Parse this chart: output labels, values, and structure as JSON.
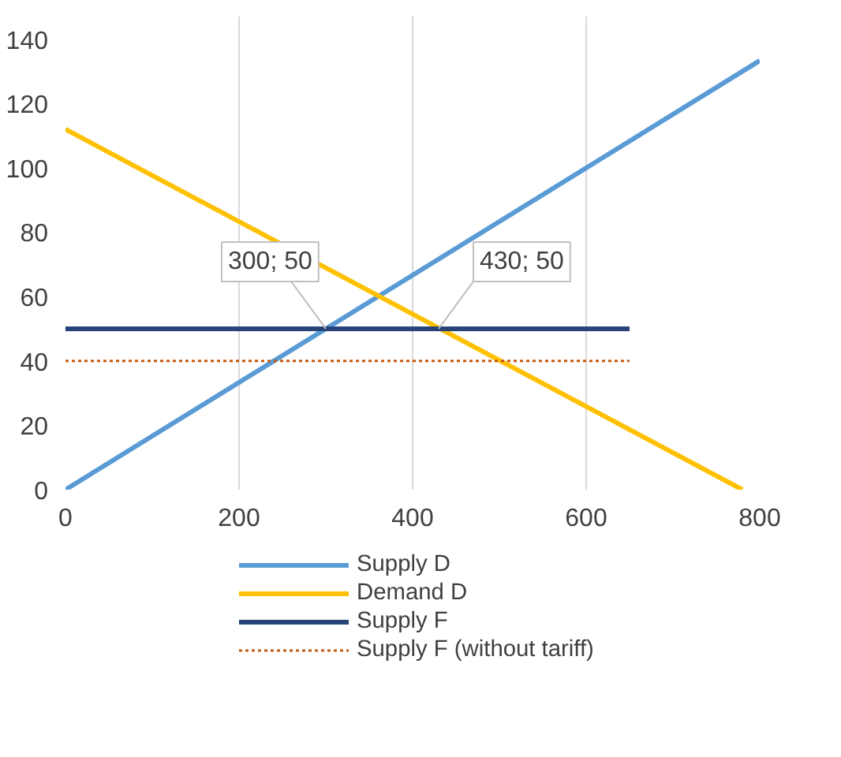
{
  "chart_data": {
    "type": "line",
    "xlim": [
      0,
      800
    ],
    "ylim": [
      0,
      147
    ],
    "xticks": [
      0,
      200,
      400,
      600,
      800
    ],
    "yticks": [
      0,
      20,
      40,
      60,
      80,
      100,
      120,
      140
    ],
    "grid": "x",
    "legend": "bottom",
    "marker": "none",
    "series": [
      {
        "name": "Supply D",
        "color": "#5b9bd5",
        "x": [
          0,
          800
        ],
        "values": [
          0,
          133.3
        ]
      },
      {
        "name": "Demand D",
        "color": "#ffc000",
        "x": [
          0,
          780
        ],
        "values": [
          112,
          0
        ]
      },
      {
        "name": "Supply F",
        "color": "#264478",
        "x": [
          0,
          650
        ],
        "values": [
          50,
          50
        ]
      },
      {
        "name": "Supply F (without tariff)",
        "color": "#c55a11",
        "x": [
          0,
          650
        ],
        "values": [
          40,
          40
        ],
        "line_style": "dotted"
      }
    ],
    "annotations": [
      {
        "text": "300; 50",
        "x": 300,
        "y": 50
      },
      {
        "text": "430; 50",
        "x": 430,
        "y": 50
      }
    ]
  }
}
